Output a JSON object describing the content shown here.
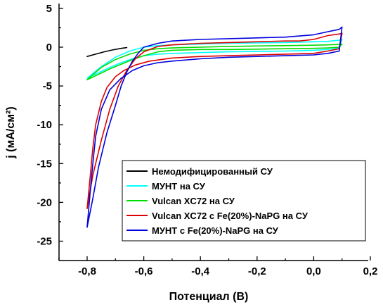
{
  "chart_data": {
    "type": "line",
    "xlabel": "Потенциал (В)",
    "ylabel": "j (мА/см²)",
    "xlim": [
      -0.9,
      0.2
    ],
    "ylim": [
      -28,
      5
    ],
    "x_ticks": [
      "-0,8",
      "-0,6",
      "-0,4",
      "-0,2",
      "0,0",
      "0,2"
    ],
    "x_tick_values": [
      -0.8,
      -0.6,
      -0.4,
      -0.2,
      0.0,
      0.2
    ],
    "y_ticks": [
      "5",
      "0",
      "-5",
      "-10",
      "-15",
      "-20",
      "-25"
    ],
    "y_tick_values": [
      5,
      0,
      -5,
      -10,
      -15,
      -20,
      -25
    ],
    "legend_position": "lower-right",
    "series": [
      {
        "name": "Немодифицированный СУ",
        "color": "#000000",
        "x": [
          -0.8,
          -0.77,
          -0.74,
          -0.71,
          -0.68,
          -0.66
        ],
        "y": [
          -1.2,
          -0.9,
          -0.6,
          -0.35,
          -0.15,
          -0.05
        ]
      },
      {
        "name": "МУНТ на СУ",
        "color": "#00ffff",
        "x": [
          -0.8,
          -0.76,
          -0.72,
          -0.68,
          -0.64,
          -0.6,
          -0.55,
          -0.5,
          -0.4,
          -0.3,
          -0.2,
          -0.1,
          0.0,
          0.05,
          0.09,
          0.1,
          0.09,
          0.05,
          0.0,
          -0.1,
          -0.2,
          -0.3,
          -0.4,
          -0.5,
          -0.55,
          -0.6,
          -0.65,
          -0.7,
          -0.75,
          -0.8
        ],
        "y": [
          -4.0,
          -3.3,
          -2.6,
          -2.0,
          -1.5,
          -1.1,
          -0.9,
          -0.8,
          -0.7,
          -0.6,
          -0.55,
          -0.5,
          -0.4,
          -0.3,
          -0.1,
          1.0,
          0.9,
          0.75,
          0.7,
          0.6,
          0.55,
          0.5,
          0.4,
          0.3,
          0.2,
          0.0,
          -0.5,
          -1.3,
          -2.5,
          -4.0
        ]
      },
      {
        "name": "Vulcan XC72 на СУ",
        "color": "#00dd00",
        "x": [
          -0.8,
          -0.76,
          -0.72,
          -0.68,
          -0.64,
          -0.6,
          -0.55,
          -0.5,
          -0.4,
          -0.3,
          -0.2,
          -0.1,
          0.0,
          0.05,
          0.09,
          0.1,
          0.09,
          0.05,
          0.0,
          -0.1,
          -0.2,
          -0.3,
          -0.4,
          -0.5,
          -0.55,
          -0.6,
          -0.65,
          -0.7,
          -0.75,
          -0.8
        ],
        "y": [
          -4.2,
          -3.5,
          -2.8,
          -2.2,
          -1.6,
          -1.1,
          -0.6,
          -0.4,
          -0.3,
          -0.3,
          -0.25,
          -0.2,
          -0.15,
          -0.1,
          0.0,
          0.4,
          0.35,
          0.3,
          0.25,
          0.2,
          0.15,
          0.1,
          0.0,
          -0.1,
          -0.2,
          -0.4,
          -0.9,
          -1.6,
          -2.6,
          -4.2
        ]
      },
      {
        "name": "Vulcan XC72 с Fe(20%)-NaPG на СУ",
        "color": "#dd0000",
        "x": [
          -0.8,
          -0.79,
          -0.78,
          -0.77,
          -0.75,
          -0.73,
          -0.7,
          -0.67,
          -0.63,
          -0.58,
          -0.5,
          -0.4,
          -0.3,
          -0.2,
          -0.1,
          0.0,
          0.05,
          0.09,
          0.1,
          0.09,
          0.05,
          0.0,
          -0.05,
          -0.1,
          -0.2,
          -0.3,
          -0.4,
          -0.5,
          -0.55,
          -0.6,
          -0.63,
          -0.66,
          -0.69,
          -0.72,
          -0.75,
          -0.78,
          -0.8
        ],
        "y": [
          -20.8,
          -17.0,
          -13.0,
          -10.0,
          -7.0,
          -5.2,
          -3.8,
          -3.0,
          -2.3,
          -1.8,
          -1.4,
          -1.2,
          -1.1,
          -1.0,
          -0.9,
          -0.8,
          -0.5,
          -0.2,
          1.8,
          1.7,
          1.5,
          1.0,
          0.8,
          0.8,
          0.7,
          0.6,
          0.5,
          0.3,
          0.1,
          -0.6,
          -1.5,
          -3.0,
          -5.0,
          -8.0,
          -12.0,
          -16.5,
          -20.8
        ]
      },
      {
        "name": "МУНТ с Fe(20%)-NaPG на СУ",
        "color": "#0000dd",
        "x": [
          -0.8,
          -0.79,
          -0.78,
          -0.77,
          -0.75,
          -0.72,
          -0.68,
          -0.64,
          -0.6,
          -0.55,
          -0.5,
          -0.4,
          -0.3,
          -0.2,
          -0.1,
          0.0,
          0.05,
          0.09,
          0.1,
          0.09,
          0.05,
          0.0,
          -0.1,
          -0.2,
          -0.3,
          -0.4,
          -0.5,
          -0.55,
          -0.6,
          -0.62,
          -0.64,
          -0.66,
          -0.68,
          -0.7,
          -0.73,
          -0.76,
          -0.78,
          -0.8
        ],
        "y": [
          -23.2,
          -19.0,
          -15.0,
          -11.5,
          -8.0,
          -5.5,
          -4.0,
          -3.0,
          -2.4,
          -2.0,
          -1.8,
          -1.5,
          -1.3,
          -1.2,
          -1.1,
          -1.0,
          -0.8,
          -0.5,
          2.6,
          2.3,
          2.0,
          1.6,
          1.3,
          1.2,
          1.1,
          1.0,
          0.8,
          0.5,
          0.0,
          -0.8,
          -1.8,
          -3.2,
          -5.0,
          -7.5,
          -11.0,
          -15.5,
          -19.5,
          -23.2
        ]
      }
    ]
  }
}
